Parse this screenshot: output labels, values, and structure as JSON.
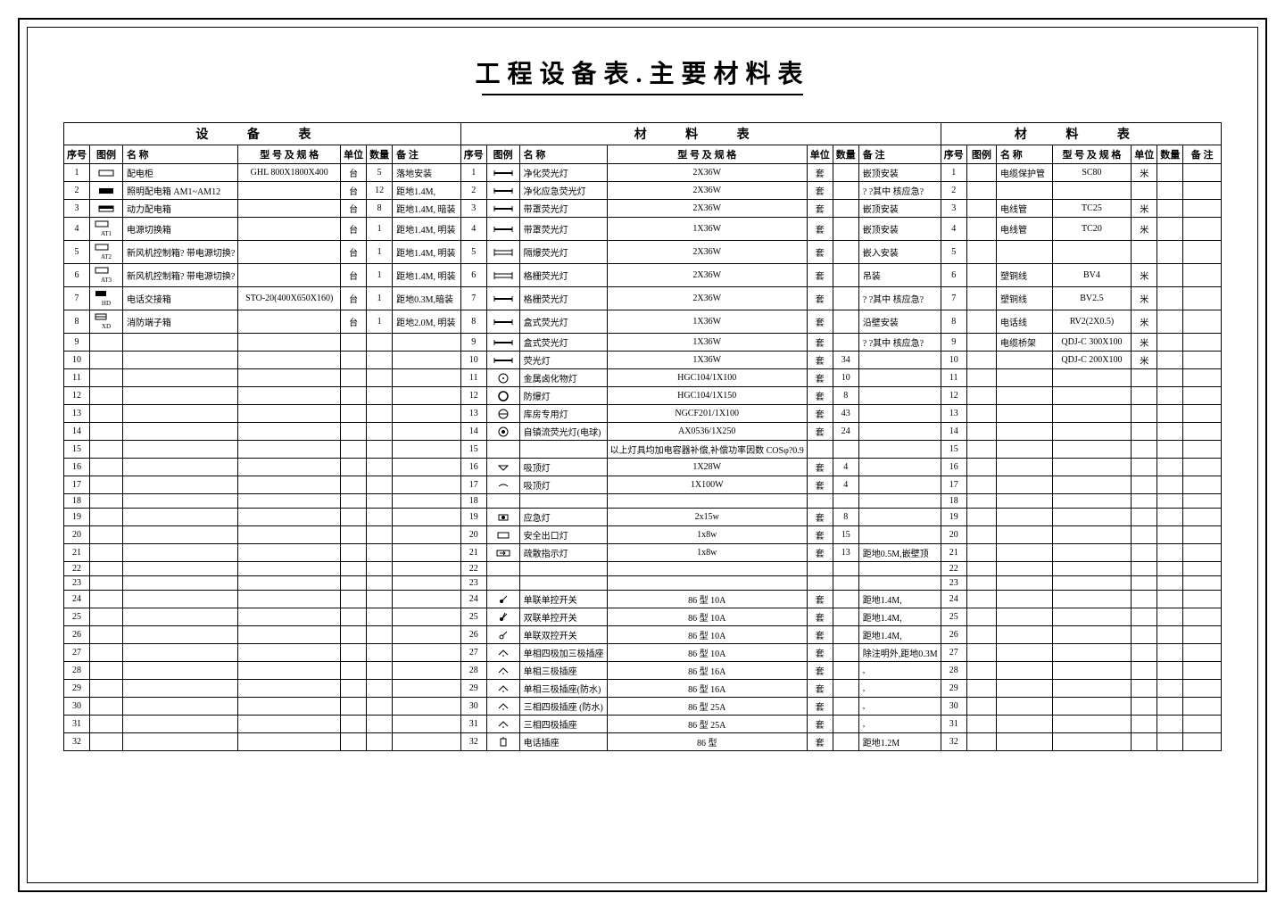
{
  "title": "工程设备表.主要材料表",
  "sections": {
    "equipment": "设 备 表",
    "material1": "材 料 表",
    "material2": "材 料 表"
  },
  "headers": {
    "seq": "序号",
    "icon": "图例",
    "name": "名   称",
    "model": "型 号 及 规 格",
    "unit": "单位",
    "qty": "数量",
    "note": "备   注"
  },
  "equipment_rows": [
    {
      "seq": "1",
      "name": "配电柜",
      "model": "GHL  800X1800X400",
      "unit": "台",
      "qty": "5",
      "note": "落地安装"
    },
    {
      "seq": "2",
      "name": "照明配电箱 AM1~AM12",
      "model": "",
      "unit": "台",
      "qty": "12",
      "note": "距地1.4M,"
    },
    {
      "seq": "3",
      "name": "动力配电箱",
      "model": "",
      "unit": "台",
      "qty": "8",
      "note": "距地1.4M, 暗装"
    },
    {
      "seq": "4",
      "name": "电源切换箱",
      "model": "",
      "unit": "台",
      "qty": "1",
      "note": "距地1.4M, 明装"
    },
    {
      "seq": "5",
      "name": "新风机控制箱? 带电源切换?",
      "model": "",
      "unit": "台",
      "qty": "1",
      "note": "距地1.4M, 明装"
    },
    {
      "seq": "6",
      "name": "新风机控制箱? 带电源切换?",
      "model": "",
      "unit": "台",
      "qty": "1",
      "note": "距地1.4M, 明装"
    },
    {
      "seq": "7",
      "name": "电话交接箱",
      "model": "STO-20(400X650X160)",
      "unit": "台",
      "qty": "1",
      "note": "距地0.3M,暗装"
    },
    {
      "seq": "8",
      "name": "消防端子箱",
      "model": "",
      "unit": "台",
      "qty": "1",
      "note": "距地2.0M, 明装"
    },
    {
      "seq": "9",
      "name": "",
      "model": "",
      "unit": "",
      "qty": "",
      "note": ""
    },
    {
      "seq": "10",
      "name": "",
      "model": "",
      "unit": "",
      "qty": "",
      "note": ""
    },
    {
      "seq": "11",
      "name": "",
      "model": "",
      "unit": "",
      "qty": "",
      "note": ""
    },
    {
      "seq": "12",
      "name": "",
      "model": "",
      "unit": "",
      "qty": "",
      "note": ""
    },
    {
      "seq": "13",
      "name": "",
      "model": "",
      "unit": "",
      "qty": "",
      "note": ""
    },
    {
      "seq": "14",
      "name": "",
      "model": "",
      "unit": "",
      "qty": "",
      "note": ""
    },
    {
      "seq": "15",
      "name": "",
      "model": "",
      "unit": "",
      "qty": "",
      "note": ""
    },
    {
      "seq": "16",
      "name": "",
      "model": "",
      "unit": "",
      "qty": "",
      "note": ""
    },
    {
      "seq": "17",
      "name": "",
      "model": "",
      "unit": "",
      "qty": "",
      "note": ""
    },
    {
      "seq": "18",
      "name": "",
      "model": "",
      "unit": "",
      "qty": "",
      "note": ""
    },
    {
      "seq": "19",
      "name": "",
      "model": "",
      "unit": "",
      "qty": "",
      "note": ""
    },
    {
      "seq": "20",
      "name": "",
      "model": "",
      "unit": "",
      "qty": "",
      "note": ""
    },
    {
      "seq": "21",
      "name": "",
      "model": "",
      "unit": "",
      "qty": "",
      "note": ""
    },
    {
      "seq": "22",
      "name": "",
      "model": "",
      "unit": "",
      "qty": "",
      "note": ""
    },
    {
      "seq": "23",
      "name": "",
      "model": "",
      "unit": "",
      "qty": "",
      "note": ""
    },
    {
      "seq": "24",
      "name": "",
      "model": "",
      "unit": "",
      "qty": "",
      "note": ""
    },
    {
      "seq": "25",
      "name": "",
      "model": "",
      "unit": "",
      "qty": "",
      "note": ""
    },
    {
      "seq": "26",
      "name": "",
      "model": "",
      "unit": "",
      "qty": "",
      "note": ""
    },
    {
      "seq": "27",
      "name": "",
      "model": "",
      "unit": "",
      "qty": "",
      "note": ""
    },
    {
      "seq": "28",
      "name": "",
      "model": "",
      "unit": "",
      "qty": "",
      "note": ""
    },
    {
      "seq": "29",
      "name": "",
      "model": "",
      "unit": "",
      "qty": "",
      "note": ""
    },
    {
      "seq": "30",
      "name": "",
      "model": "",
      "unit": "",
      "qty": "",
      "note": ""
    },
    {
      "seq": "31",
      "name": "",
      "model": "",
      "unit": "",
      "qty": "",
      "note": ""
    },
    {
      "seq": "32",
      "name": "",
      "model": "",
      "unit": "",
      "qty": "",
      "note": ""
    }
  ],
  "material1_rows": [
    {
      "seq": "1",
      "name": "净化荧光灯",
      "model": "2X36W",
      "unit": "套",
      "qty": "",
      "note": "嵌顶安装"
    },
    {
      "seq": "2",
      "name": "净化应急荧光灯",
      "model": "2X36W",
      "unit": "套",
      "qty": "",
      "note": "? ?其中 核应急?"
    },
    {
      "seq": "3",
      "name": "带罩荧光灯",
      "model": "2X36W",
      "unit": "套",
      "qty": "",
      "note": "嵌顶安装"
    },
    {
      "seq": "4",
      "name": "带罩荧光灯",
      "model": "1X36W",
      "unit": "套",
      "qty": "",
      "note": "嵌顶安装"
    },
    {
      "seq": "5",
      "name": "隔爆荧光灯",
      "model": "2X36W",
      "unit": "套",
      "qty": "",
      "note": "嵌入安装"
    },
    {
      "seq": "6",
      "name": "格栅荧光灯",
      "model": "2X36W",
      "unit": "套",
      "qty": "",
      "note": "吊装"
    },
    {
      "seq": "7",
      "name": "格栅荧光灯",
      "model": "2X36W",
      "unit": "套",
      "qty": "",
      "note": "? ?其中 核应急?"
    },
    {
      "seq": "8",
      "name": "盒式荧光灯",
      "model": "1X36W",
      "unit": "套",
      "qty": "",
      "note": "沿壁安装"
    },
    {
      "seq": "9",
      "name": "盒式荧光灯",
      "model": "1X36W",
      "unit": "套",
      "qty": "",
      "note": "? ?其中 核应急?"
    },
    {
      "seq": "10",
      "name": "荧光灯",
      "model": "1X36W",
      "unit": "套",
      "qty": "34",
      "note": ""
    },
    {
      "seq": "11",
      "name": "金属卤化物灯",
      "model": "HGC104/1X100",
      "unit": "套",
      "qty": "10",
      "note": ""
    },
    {
      "seq": "12",
      "name": "防爆灯",
      "model": "HGC104/1X150",
      "unit": "套",
      "qty": "8",
      "note": ""
    },
    {
      "seq": "13",
      "name": "库房专用灯",
      "model": "NGCF201/1X100",
      "unit": "套",
      "qty": "43",
      "note": ""
    },
    {
      "seq": "14",
      "name": "自镇流荧光灯(电球)",
      "model": "AX0536/1X250",
      "unit": "套",
      "qty": "24",
      "note": ""
    },
    {
      "seq": "15",
      "name": "",
      "model": "以上灯具均加电容器补偿,补偿功率因数 COSφ?0.9",
      "unit": "",
      "qty": "",
      "note": ""
    },
    {
      "seq": "16",
      "name": "吸顶灯",
      "model": "1X28W",
      "unit": "套",
      "qty": "4",
      "note": ""
    },
    {
      "seq": "17",
      "name": "吸顶灯",
      "model": "1X100W",
      "unit": "套",
      "qty": "4",
      "note": ""
    },
    {
      "seq": "18",
      "name": "",
      "model": "",
      "unit": "",
      "qty": "",
      "note": ""
    },
    {
      "seq": "19",
      "name": "应急灯",
      "model": "2x15w",
      "unit": "套",
      "qty": "8",
      "note": ""
    },
    {
      "seq": "20",
      "name": "安全出口灯",
      "model": "1x8w",
      "unit": "套",
      "qty": "15",
      "note": ""
    },
    {
      "seq": "21",
      "name": "疏散指示灯",
      "model": "1x8w",
      "unit": "套",
      "qty": "13",
      "note": "距地0.5M,嵌壁顶"
    },
    {
      "seq": "22",
      "name": "",
      "model": "",
      "unit": "",
      "qty": "",
      "note": ""
    },
    {
      "seq": "23",
      "name": "",
      "model": "",
      "unit": "",
      "qty": "",
      "note": ""
    },
    {
      "seq": "24",
      "name": "单联单控开关",
      "model": "86 型  10A",
      "unit": "套",
      "qty": "",
      "note": "距地1.4M,"
    },
    {
      "seq": "25",
      "name": "双联单控开关",
      "model": "86 型  10A",
      "unit": "套",
      "qty": "",
      "note": "距地1.4M,"
    },
    {
      "seq": "26",
      "name": "单联双控开关",
      "model": "86 型  10A",
      "unit": "套",
      "qty": "",
      "note": "距地1.4M,"
    },
    {
      "seq": "27",
      "name": "单相四极加三极插座",
      "model": "86 型  10A",
      "unit": "套",
      "qty": "",
      "note": "除注明外,距地0.3M"
    },
    {
      "seq": "28",
      "name": "单相三极插座",
      "model": "86 型  16A",
      "unit": "套",
      "qty": "",
      "note": ","
    },
    {
      "seq": "29",
      "name": "单相三极插座(防水)",
      "model": "86 型  16A",
      "unit": "套",
      "qty": "",
      "note": ","
    },
    {
      "seq": "30",
      "name": "三相四极插座 (防水)",
      "model": "86 型  25A",
      "unit": "套",
      "qty": "",
      "note": ","
    },
    {
      "seq": "31",
      "name": "三相四极插座",
      "model": "86 型  25A",
      "unit": "套",
      "qty": "",
      "note": ","
    },
    {
      "seq": "32",
      "name": "电话插座",
      "model": "86 型",
      "unit": "套",
      "qty": "",
      "note": "距地1.2M"
    }
  ],
  "material2_rows": [
    {
      "seq": "1",
      "name": "电缆保护管",
      "model": "SC80",
      "unit": "米",
      "qty": "",
      "note": ""
    },
    {
      "seq": "2",
      "name": "",
      "model": "",
      "unit": "",
      "qty": "",
      "note": ""
    },
    {
      "seq": "3",
      "name": "电线管",
      "model": "TC25",
      "unit": "米",
      "qty": "",
      "note": ""
    },
    {
      "seq": "4",
      "name": "电线管",
      "model": "TC20",
      "unit": "米",
      "qty": "",
      "note": ""
    },
    {
      "seq": "5",
      "name": "",
      "model": "",
      "unit": "",
      "qty": "",
      "note": ""
    },
    {
      "seq": "6",
      "name": "塑铜线",
      "model": "BV4",
      "unit": "米",
      "qty": "",
      "note": ""
    },
    {
      "seq": "7",
      "name": "塑铜线",
      "model": "BV2.5",
      "unit": "米",
      "qty": "",
      "note": ""
    },
    {
      "seq": "8",
      "name": "电话线",
      "model": "RV2(2X0.5)",
      "unit": "米",
      "qty": "",
      "note": ""
    },
    {
      "seq": "9",
      "name": "电缆桥架",
      "model": "QDJ-C  300X100",
      "unit": "米",
      "qty": "",
      "note": ""
    },
    {
      "seq": "10",
      "name": "",
      "model": "QDJ-C  200X100",
      "unit": "米",
      "qty": "",
      "note": ""
    },
    {
      "seq": "11",
      "name": "",
      "model": "",
      "unit": "",
      "qty": "",
      "note": ""
    },
    {
      "seq": "12",
      "name": "",
      "model": "",
      "unit": "",
      "qty": "",
      "note": ""
    },
    {
      "seq": "13",
      "name": "",
      "model": "",
      "unit": "",
      "qty": "",
      "note": ""
    },
    {
      "seq": "14",
      "name": "",
      "model": "",
      "unit": "",
      "qty": "",
      "note": ""
    },
    {
      "seq": "15",
      "name": "",
      "model": "",
      "unit": "",
      "qty": "",
      "note": ""
    },
    {
      "seq": "16",
      "name": "",
      "model": "",
      "unit": "",
      "qty": "",
      "note": ""
    },
    {
      "seq": "17",
      "name": "",
      "model": "",
      "unit": "",
      "qty": "",
      "note": ""
    },
    {
      "seq": "18",
      "name": "",
      "model": "",
      "unit": "",
      "qty": "",
      "note": ""
    },
    {
      "seq": "19",
      "name": "",
      "model": "",
      "unit": "",
      "qty": "",
      "note": ""
    },
    {
      "seq": "20",
      "name": "",
      "model": "",
      "unit": "",
      "qty": "",
      "note": ""
    },
    {
      "seq": "21",
      "name": "",
      "model": "",
      "unit": "",
      "qty": "",
      "note": ""
    },
    {
      "seq": "22",
      "name": "",
      "model": "",
      "unit": "",
      "qty": "",
      "note": ""
    },
    {
      "seq": "23",
      "name": "",
      "model": "",
      "unit": "",
      "qty": "",
      "note": ""
    },
    {
      "seq": "24",
      "name": "",
      "model": "",
      "unit": "",
      "qty": "",
      "note": ""
    },
    {
      "seq": "25",
      "name": "",
      "model": "",
      "unit": "",
      "qty": "",
      "note": ""
    },
    {
      "seq": "26",
      "name": "",
      "model": "",
      "unit": "",
      "qty": "",
      "note": ""
    },
    {
      "seq": "27",
      "name": "",
      "model": "",
      "unit": "",
      "qty": "",
      "note": ""
    },
    {
      "seq": "28",
      "name": "",
      "model": "",
      "unit": "",
      "qty": "",
      "note": ""
    },
    {
      "seq": "29",
      "name": "",
      "model": "",
      "unit": "",
      "qty": "",
      "note": ""
    },
    {
      "seq": "30",
      "name": "",
      "model": "",
      "unit": "",
      "qty": "",
      "note": ""
    },
    {
      "seq": "31",
      "name": "",
      "model": "",
      "unit": "",
      "qty": "",
      "note": ""
    },
    {
      "seq": "32",
      "name": "",
      "model": "",
      "unit": "",
      "qty": "",
      "note": ""
    }
  ],
  "equipment_icons": [
    "rect-outline",
    "rect-solid",
    "rect-half",
    "rect-at1",
    "rect-at2",
    "rect-at3",
    "rect-hd",
    "rect-xd"
  ],
  "material1_icons": [
    "light1",
    "light2",
    "light3",
    "light4",
    "light5",
    "light6",
    "light7",
    "light8",
    "light9",
    "light10",
    "circle-dot",
    "circle",
    "circle-line",
    "circle-fill",
    "",
    "ceiling1",
    "ceiling2",
    "",
    "emergency",
    "exit",
    "arrow",
    "",
    "",
    "switch1",
    "switch2",
    "switch3",
    "socket1",
    "socket2",
    "socket3",
    "socket4",
    "socket5",
    "phone"
  ]
}
